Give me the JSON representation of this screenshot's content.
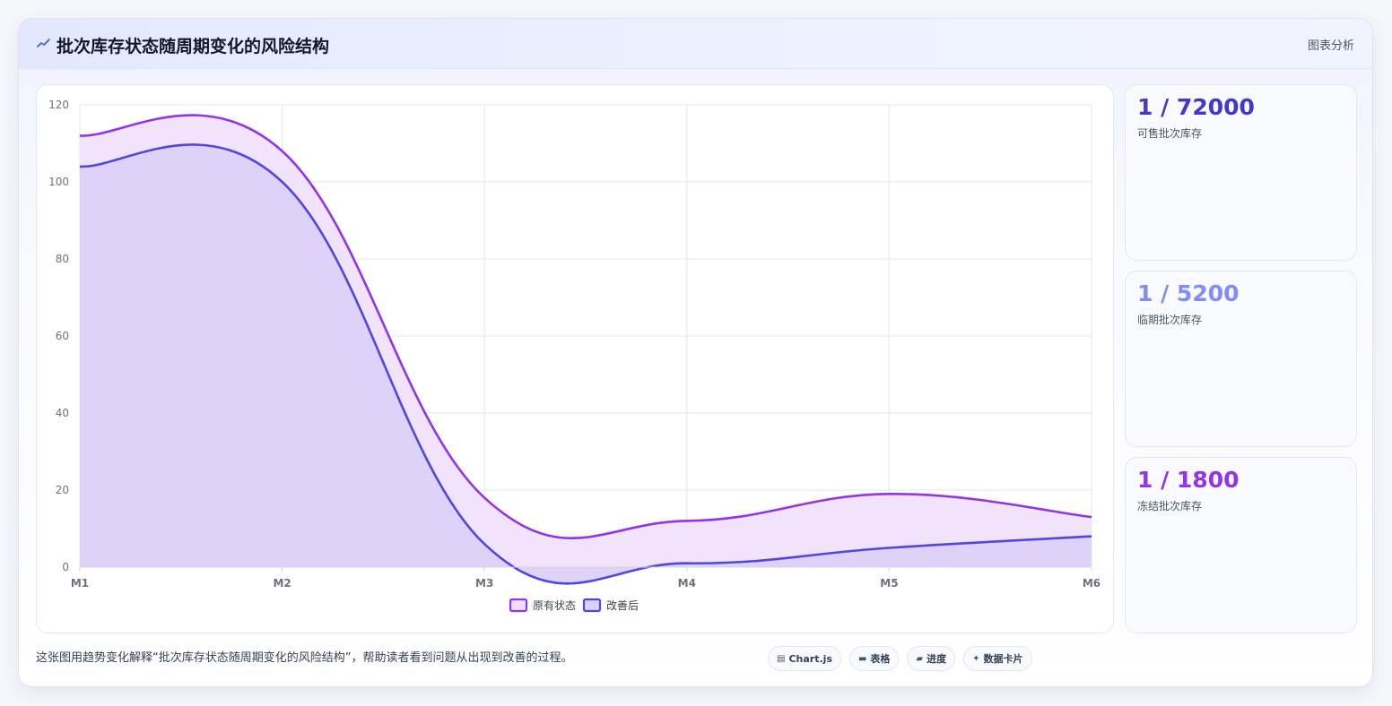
{
  "header": {
    "icon": "line-chart-icon",
    "title": "批次库存状态随周期变化的风险结构",
    "tag": "图表分析"
  },
  "chart_data": {
    "type": "area",
    "categories": [
      "M1",
      "M2",
      "M3",
      "M4",
      "M5",
      "M6"
    ],
    "series": [
      {
        "name": "原有状态",
        "values": [
          112,
          108,
          18,
          12,
          19,
          13
        ],
        "color": "#9333ea",
        "fill": "#efe0fa"
      },
      {
        "name": "改善后",
        "values": [
          104,
          100,
          6,
          1,
          5,
          8
        ],
        "color": "#4f46e5",
        "fill": "#dccff7"
      }
    ],
    "ylim": [
      0,
      120
    ],
    "yticks": [
      0,
      20,
      40,
      60,
      80,
      100,
      120
    ],
    "grid": true,
    "legend": "bottom-center"
  },
  "kpis": [
    {
      "value": "1 / 72000",
      "label": "可售批次库存",
      "color": "#4338ca"
    },
    {
      "value": "1 / 5200",
      "label": "临期批次库存",
      "color": "#818cf8"
    },
    {
      "value": "1 / 1800",
      "label": "冻结批次库存",
      "color": "#9333ea"
    }
  ],
  "footer": {
    "text": "这张图用趋势变化解释“批次库存状态随周期变化的风险结构”，帮助读者看到问题从出现到改善的过程。",
    "chips": [
      {
        "icon": "chart-icon",
        "glyph": "▤",
        "label": "Chart.js"
      },
      {
        "icon": "table-icon",
        "glyph": "▬",
        "label": "表格"
      },
      {
        "icon": "progress-icon",
        "glyph": "▰",
        "label": "进度"
      },
      {
        "icon": "sparkle-icon",
        "glyph": "✦",
        "label": "数据卡片"
      }
    ]
  }
}
